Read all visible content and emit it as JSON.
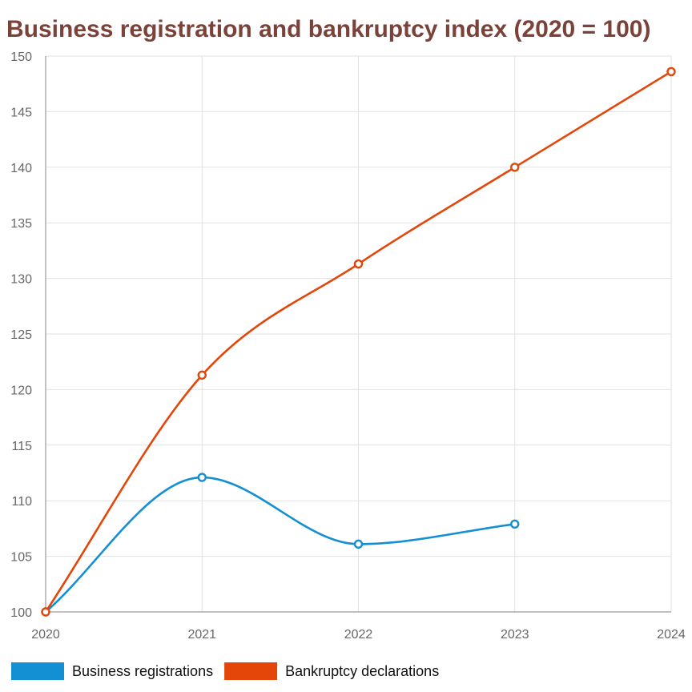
{
  "chart_data": {
    "type": "line",
    "title": "Business registration and bankruptcy index (2020 = 100)",
    "title_color": "#7a4238",
    "xlabel": "",
    "ylabel": "",
    "categories": [
      "2020",
      "2021",
      "2022",
      "2023",
      "2024"
    ],
    "ylim": [
      100,
      150
    ],
    "yticks": [
      100,
      105,
      110,
      115,
      120,
      125,
      130,
      135,
      140,
      145,
      150
    ],
    "grid": true,
    "legend_position": "bottom-left",
    "series": [
      {
        "name": "Business registrations",
        "color": "#138fd4",
        "values": [
          100,
          112.1,
          106.1,
          107.9,
          null
        ]
      },
      {
        "name": "Bankruptcy declarations",
        "color": "#e4460a",
        "values": [
          100,
          121.3,
          131.3,
          140.0,
          148.6
        ]
      }
    ]
  }
}
